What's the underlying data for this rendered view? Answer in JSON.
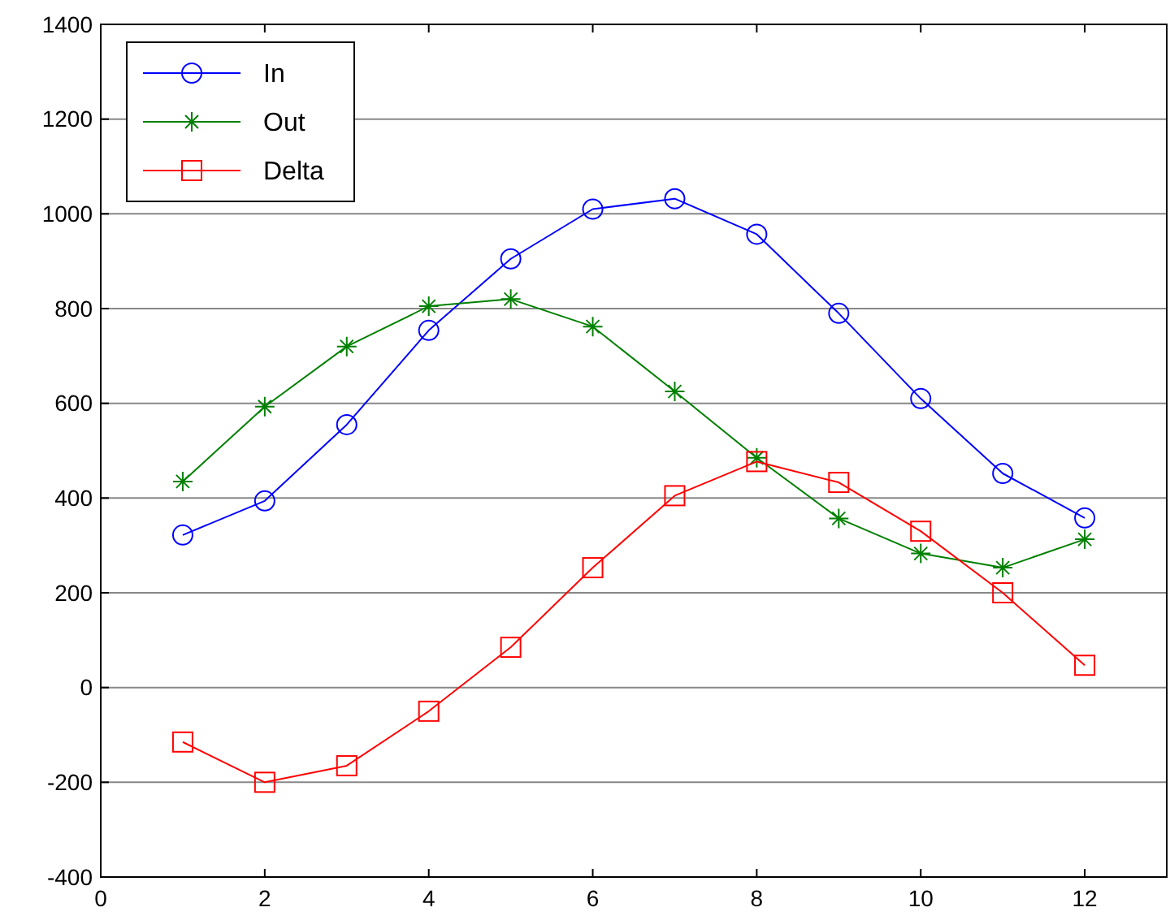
{
  "chart_data": {
    "type": "line",
    "x": [
      1,
      2,
      3,
      4,
      5,
      6,
      7,
      8,
      9,
      10,
      11,
      12
    ],
    "series": [
      {
        "name": "In",
        "color": "#0000ff",
        "marker": "circle",
        "values": [
          322,
          394,
          555,
          754,
          905,
          1010,
          1032,
          957,
          790,
          610,
          452,
          358
        ]
      },
      {
        "name": "Out",
        "color": "#008000",
        "marker": "cross",
        "values": [
          435,
          593,
          720,
          805,
          820,
          762,
          625,
          485,
          357,
          283,
          253,
          313
        ]
      },
      {
        "name": "Delta",
        "color": "#ff0000",
        "marker": "square",
        "values": [
          -115,
          -200,
          -165,
          -50,
          85,
          253,
          405,
          477,
          433,
          330,
          200,
          47
        ]
      }
    ],
    "xlim": [
      0,
      13
    ],
    "xticks": [
      0,
      2,
      4,
      6,
      8,
      10,
      12
    ],
    "ylim": [
      -400,
      1400
    ],
    "yticks": [
      -400,
      -200,
      0,
      200,
      400,
      600,
      800,
      1000,
      1200,
      1400
    ],
    "grid": "y",
    "legend": "top left",
    "line_style": "solid"
  }
}
